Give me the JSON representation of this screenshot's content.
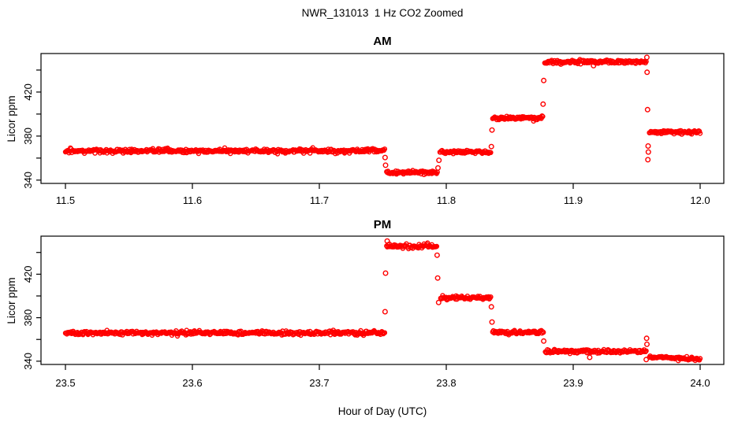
{
  "chart_data": {
    "type": "scatter",
    "title": "NWR_131013  1 Hz CO2 Zoomed",
    "xlabel": "Hour of Day (UTC)",
    "ylabel": "Licor ppm",
    "point_color": "#FF0000",
    "axis_color": "#000000",
    "background": "#FFFFFF",
    "marker": "open-circle",
    "sample_interval_sec": 1,
    "grid": false,
    "panels": [
      {
        "title": "AM",
        "ylim": [
          337,
          455
        ],
        "xtick_values": [
          11.5,
          11.6,
          11.7,
          11.8,
          11.9,
          12.0
        ],
        "xtick_labels": [
          "11.5",
          "11.6",
          "11.7",
          "11.8",
          "11.9",
          "12.0"
        ],
        "ytick_values": [
          340,
          360,
          380,
          400,
          420,
          440
        ],
        "ytick_labeled_values": [
          340,
          380,
          420
        ],
        "ytick_labels": [
          "340",
          "380",
          "420"
        ],
        "segments": [
          {
            "x_start": 11.5,
            "x_end": 11.7515,
            "value": 366.5,
            "noise": 0.9
          },
          {
            "x_start": 11.753,
            "x_end": 11.793,
            "value": 347.0,
            "noise": 0.8
          },
          {
            "x_start": 11.795,
            "x_end": 11.835,
            "value": 365.5,
            "noise": 0.8
          },
          {
            "x_start": 11.8365,
            "x_end": 11.876,
            "value": 396.5,
            "noise": 0.8
          },
          {
            "x_start": 11.8775,
            "x_end": 11.9575,
            "value": 447.5,
            "noise": 0.9
          },
          {
            "x_start": 11.96,
            "x_end": 12.0,
            "value": 383.5,
            "noise": 0.8
          }
        ],
        "outliers": [
          {
            "x": 11.7518,
            "y": 360.5
          },
          {
            "x": 11.7522,
            "y": 353.5
          },
          {
            "x": 11.7935,
            "y": 351.0
          },
          {
            "x": 11.7942,
            "y": 358.0
          },
          {
            "x": 11.8355,
            "y": 370.5
          },
          {
            "x": 11.836,
            "y": 385.5
          },
          {
            "x": 11.8763,
            "y": 409.0
          },
          {
            "x": 11.8768,
            "y": 430.5
          },
          {
            "x": 11.916,
            "y": 444.0
          },
          {
            "x": 11.958,
            "y": 451.5
          },
          {
            "x": 11.9582,
            "y": 438.0
          },
          {
            "x": 11.9586,
            "y": 404.0
          },
          {
            "x": 11.9588,
            "y": 358.5
          },
          {
            "x": 11.959,
            "y": 371.0
          },
          {
            "x": 11.9592,
            "y": 365.5
          }
        ]
      },
      {
        "title": "PM",
        "ylim": [
          337,
          455
        ],
        "xtick_values": [
          23.5,
          23.6,
          23.7,
          23.8,
          23.9,
          24.0
        ],
        "xtick_labels": [
          "23.5",
          "23.6",
          "23.7",
          "23.8",
          "23.9",
          "24.0"
        ],
        "ytick_values": [
          340,
          360,
          380,
          400,
          420,
          440
        ],
        "ytick_labeled_values": [
          340,
          380,
          420
        ],
        "ytick_labels": [
          "340",
          "380",
          "420"
        ],
        "segments": [
          {
            "x_start": 23.5,
            "x_end": 23.7515,
            "value": 366.0,
            "noise": 0.9
          },
          {
            "x_start": 23.753,
            "x_end": 23.7925,
            "value": 445.5,
            "noise": 0.9
          },
          {
            "x_start": 23.7955,
            "x_end": 23.835,
            "value": 398.5,
            "noise": 0.8
          },
          {
            "x_start": 23.8365,
            "x_end": 23.8765,
            "value": 366.5,
            "noise": 0.8
          },
          {
            "x_start": 23.878,
            "x_end": 23.9575,
            "value": 349.0,
            "noise": 0.8
          },
          {
            "x_start": 23.96,
            "x_end": 24.0,
            "value": 344.0,
            "value_end": 342.0,
            "noise": 0.7
          }
        ],
        "outliers": [
          {
            "x": 23.7518,
            "y": 385.5
          },
          {
            "x": 23.7522,
            "y": 421.0
          },
          {
            "x": 23.7535,
            "y": 450.5
          },
          {
            "x": 23.7928,
            "y": 437.5
          },
          {
            "x": 23.7932,
            "y": 416.5
          },
          {
            "x": 23.794,
            "y": 394.0
          },
          {
            "x": 23.8355,
            "y": 390.0
          },
          {
            "x": 23.836,
            "y": 376.0
          },
          {
            "x": 23.8768,
            "y": 358.5
          },
          {
            "x": 23.913,
            "y": 343.5
          },
          {
            "x": 23.9575,
            "y": 341.5
          },
          {
            "x": 23.9578,
            "y": 361.0
          },
          {
            "x": 23.9581,
            "y": 355.5
          }
        ]
      }
    ]
  }
}
